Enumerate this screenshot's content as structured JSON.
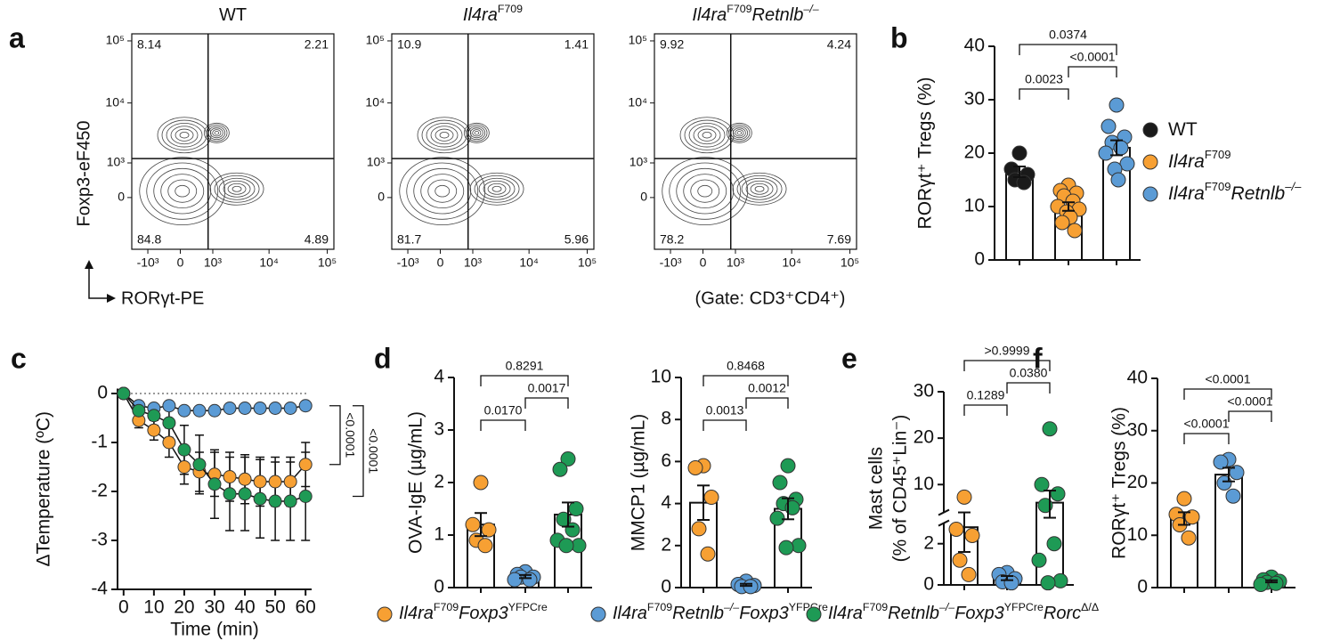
{
  "chart_data": [
    {
      "type": "flow",
      "label": "a",
      "ylabel": "Foxp3-eF450",
      "xlabel": "RORγt-PE",
      "note": "(Gate: CD3⁺CD4⁺)",
      "xlim": [
        -2000,
        130000
      ],
      "ylim": [
        -2000,
        130000
      ],
      "xticks": [
        {
          "value": -1000,
          "label": "-10³"
        },
        0,
        {
          "value": 1000,
          "label": "10³"
        },
        {
          "value": 10000,
          "label": "10⁴"
        },
        {
          "value": 100000,
          "label": "10⁵"
        }
      ],
      "yticks": [
        0,
        {
          "value": 1000,
          "label": "10³"
        },
        {
          "value": 10000,
          "label": "10⁴"
        },
        {
          "value": 100000,
          "label": "10⁵"
        }
      ],
      "gate": [
        800,
        1200
      ],
      "panels": [
        {
          "title": [
            [
              "WT",
              ""
            ]
          ],
          "quadrants": [
            8.14,
            2.21,
            84.8,
            4.89
          ]
        },
        {
          "title": [
            [
              "Il4ra",
              "i"
            ],
            [
              "F709",
              "sup"
            ]
          ],
          "quadrants": [
            10.9,
            1.41,
            81.7,
            5.96
          ]
        },
        {
          "title": [
            [
              "Il4ra",
              "i"
            ],
            [
              "F709",
              "sup"
            ],
            [
              "Retnlb",
              "i"
            ],
            [
              "–/–",
              "isup"
            ]
          ],
          "quadrants": [
            9.92,
            4.24,
            78.2,
            7.69
          ]
        }
      ]
    },
    {
      "type": "bar",
      "label": "b",
      "ylabel": "RORγt⁺ Tregs (%)",
      "ylim": [
        0,
        40
      ],
      "yticks": [
        0,
        10,
        20,
        30,
        40
      ],
      "series": [
        {
          "name": [
            [
              "WT",
              ""
            ]
          ],
          "color": "#1a1a1a",
          "mean": 16.5,
          "error": 1.0,
          "values": [
            20,
            17,
            16,
            15,
            14.5
          ]
        },
        {
          "name": [
            [
              "Il4ra",
              "i"
            ],
            [
              "F709",
              "sup"
            ]
          ],
          "color": "#f7a033",
          "mean": 10,
          "error": 0.8,
          "values": [
            14,
            13,
            12.5,
            12,
            11,
            10,
            9.5,
            9,
            8,
            7,
            5.5
          ]
        },
        {
          "name": [
            [
              "Il4ra",
              "i"
            ],
            [
              "F709",
              "sup"
            ],
            [
              "Retnlb",
              "i"
            ],
            [
              "–/–",
              "isup"
            ]
          ],
          "color": "#5b9bd5",
          "mean": 21,
          "error": 1.4,
          "values": [
            29,
            25,
            23,
            22,
            21,
            20,
            18,
            17,
            15
          ]
        }
      ],
      "comparisons": [
        {
          "groups": [
            0,
            1
          ],
          "label": "0.0023"
        },
        {
          "groups": [
            1,
            2
          ],
          "label": "<0.0001"
        },
        {
          "groups": [
            0,
            2
          ],
          "label": "0.0374"
        }
      ]
    },
    {
      "type": "line",
      "label": "c",
      "xlabel": "Time (min)",
      "ylabel": "ΔTemperature (ºC)",
      "x": [
        0,
        5,
        10,
        15,
        20,
        25,
        30,
        35,
        40,
        45,
        50,
        55,
        60
      ],
      "xlim": [
        -2,
        62
      ],
      "xticks": [
        0,
        10,
        20,
        30,
        40,
        50,
        60
      ],
      "ylim": [
        -4,
        0.1
      ],
      "yticks": [
        0,
        -1,
        -2,
        -3,
        -4
      ],
      "series": [
        {
          "color": "#f7a033",
          "values": [
            0,
            -0.55,
            -0.75,
            -1.0,
            -1.5,
            -1.6,
            -1.65,
            -1.7,
            -1.75,
            -1.8,
            -1.8,
            -1.8,
            -1.45
          ],
          "errors": [
            0,
            0.15,
            0.2,
            0.3,
            0.35,
            0.4,
            0.45,
            0.5,
            0.5,
            0.5,
            0.5,
            0.5,
            0.45
          ]
        },
        {
          "color": "#5b9bd5",
          "values": [
            0,
            -0.25,
            -0.3,
            -0.25,
            -0.35,
            -0.35,
            -0.35,
            -0.3,
            -0.3,
            -0.3,
            -0.3,
            -0.3,
            -0.25
          ],
          "errors": [
            0,
            0.05,
            0.05,
            0.05,
            0.05,
            0.05,
            0.05,
            0.05,
            0.05,
            0.05,
            0.05,
            0.05,
            0.05
          ]
        },
        {
          "color": "#1e9a55",
          "values": [
            0,
            -0.35,
            -0.45,
            -0.6,
            -1.15,
            -1.45,
            -1.85,
            -2.05,
            -2.05,
            -2.15,
            -2.2,
            -2.2,
            -2.1
          ],
          "errors": [
            0,
            0.1,
            0.2,
            0.3,
            0.5,
            0.6,
            0.7,
            0.75,
            0.75,
            0.8,
            0.8,
            0.8,
            0.9
          ]
        }
      ],
      "comparisons": [
        {
          "series": [
            1,
            0
          ],
          "label": "<0.0001"
        },
        {
          "series": [
            1,
            2
          ],
          "label": "<0.0001"
        }
      ]
    },
    {
      "type": "bar",
      "label": "d",
      "ylabel": "OVA-IgE (µg/mL)",
      "ylim": [
        0,
        4
      ],
      "yticks": [
        0,
        1,
        2,
        3,
        4
      ],
      "series": [
        {
          "color": "#f7a033",
          "mean": 1.2,
          "error": 0.22,
          "values": [
            2.0,
            1.2,
            1.1,
            0.9,
            0.8
          ]
        },
        {
          "color": "#5b9bd5",
          "mean": 0.21,
          "error": 0.03,
          "values": [
            0.3,
            0.25,
            0.2,
            0.2,
            0.15,
            0.15
          ]
        },
        {
          "color": "#1e9a55",
          "mean": 1.39,
          "error": 0.23,
          "values": [
            2.45,
            2.25,
            1.5,
            1.3,
            1.1,
            0.9,
            0.8,
            0.8
          ]
        }
      ],
      "comparisons": [
        {
          "groups": [
            0,
            1
          ],
          "label": "0.0170"
        },
        {
          "groups": [
            1,
            2
          ],
          "label": "0.0017"
        },
        {
          "groups": [
            0,
            2
          ],
          "label": "0.8291"
        }
      ]
    },
    {
      "type": "bar",
      "ylabel": "MMCP1 (µg/mL)",
      "ylim": [
        0,
        10
      ],
      "yticks": [
        0,
        2,
        4,
        6,
        8,
        10
      ],
      "series": [
        {
          "color": "#f7a033",
          "mean": 4.04,
          "error": 0.82,
          "values": [
            5.8,
            5.7,
            4.3,
            2.8,
            1.6
          ]
        },
        {
          "color": "#5b9bd5",
          "mean": 0.13,
          "error": 0.05,
          "values": [
            0.3,
            0.15,
            0.1,
            0.05,
            0.05
          ]
        },
        {
          "color": "#1e9a55",
          "mean": 3.75,
          "error": 0.5,
          "values": [
            5.8,
            5.0,
            4.2,
            4.0,
            3.8,
            3.3,
            2.0,
            1.9
          ]
        }
      ],
      "comparisons": [
        {
          "groups": [
            0,
            1
          ],
          "label": "0.0013"
        },
        {
          "groups": [
            1,
            2
          ],
          "label": "0.0012"
        },
        {
          "groups": [
            0,
            2
          ],
          "label": "0.8468"
        }
      ]
    },
    {
      "type": "bar",
      "label": "e",
      "ylabel": [
        "Mast cells",
        "(% of CD45⁺Lin⁻)"
      ],
      "ylim": [
        0,
        30
      ],
      "ybreak": [
        3,
        4
      ],
      "yticks": [
        0,
        2,
        10,
        20,
        30
      ],
      "series": [
        {
          "color": "#f7a033",
          "mean": 2.8,
          "error": 1.2,
          "values": [
            7.3,
            2.7,
            2.4,
            1.2,
            0.5
          ]
        },
        {
          "color": "#5b9bd5",
          "mean": 0.33,
          "error": 0.1,
          "values": [
            0.6,
            0.5,
            0.3,
            0.15,
            0.1
          ]
        },
        {
          "color": "#1e9a55",
          "mean": 6.1,
          "error": 2.6,
          "values": [
            22,
            10,
            8,
            5.5,
            2.0,
            1.2,
            0.2,
            0.1
          ]
        }
      ],
      "comparisons": [
        {
          "groups": [
            0,
            1
          ],
          "label": "0.1289"
        },
        {
          "groups": [
            1,
            2
          ],
          "label": "0.0380"
        },
        {
          "groups": [
            0,
            2
          ],
          "label": ">0.9999"
        }
      ]
    },
    {
      "type": "bar",
      "label": "f",
      "ylabel": "RORγt⁺ Tregs (%)",
      "ylim": [
        0,
        40
      ],
      "yticks": [
        0,
        10,
        20,
        30,
        40
      ],
      "series": [
        {
          "color": "#f7a033",
          "mean": 13.2,
          "error": 1.2,
          "values": [
            17,
            14,
            13.5,
            12,
            9.5
          ]
        },
        {
          "color": "#5b9bd5",
          "mean": 21.6,
          "error": 1.3,
          "values": [
            24.5,
            24,
            22,
            20,
            17.5
          ]
        },
        {
          "color": "#1e9a55",
          "mean": 1.2,
          "error": 0.2,
          "values": [
            2,
            1.5,
            1.2,
            1,
            0.8,
            0.6
          ]
        }
      ],
      "comparisons": [
        {
          "groups": [
            0,
            1
          ],
          "label": "<0.0001"
        },
        {
          "groups": [
            1,
            2
          ],
          "label": "<0.0001"
        },
        {
          "groups": [
            0,
            2
          ],
          "label": "<0.0001"
        }
      ]
    }
  ],
  "legend": [
    {
      "color": "#f7a033",
      "name": [
        [
          "Il4ra",
          "i"
        ],
        [
          "F709",
          "sup"
        ],
        [
          "Foxp3",
          "i"
        ],
        [
          "YFPCre",
          "sup"
        ]
      ]
    },
    {
      "color": "#5b9bd5",
      "name": [
        [
          "Il4ra",
          "i"
        ],
        [
          "F709",
          "sup"
        ],
        [
          "Retnlb",
          "i"
        ],
        [
          "–/–",
          "isup"
        ],
        [
          "Foxp3",
          "i"
        ],
        [
          "YFPCre",
          "sup"
        ]
      ]
    },
    {
      "color": "#1e9a55",
      "name": [
        [
          "Il4ra",
          "i"
        ],
        [
          "F709",
          "sup"
        ],
        [
          "Retnlb",
          "i"
        ],
        [
          "–/–",
          "isup"
        ],
        [
          "Foxp3",
          "i"
        ],
        [
          "YFPCre",
          "sup"
        ],
        [
          "Rorc",
          "i"
        ],
        [
          "Δ/Δ",
          "sup"
        ]
      ]
    }
  ]
}
